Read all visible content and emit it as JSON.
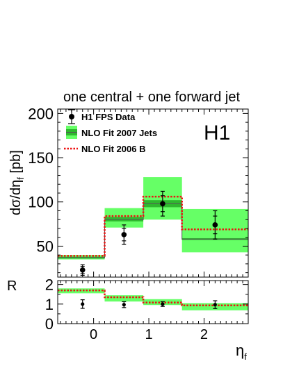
{
  "chart_data": {
    "type": "bar",
    "title": "one central + one forward jet",
    "experiment_label": "H1",
    "xlabel": "η",
    "xlabel_sub": "f",
    "ylabel": "dσ/dη",
    "ylabel_sub": "f",
    "ylabel_unit": " [pb]",
    "ratio_ylabel": "R",
    "xlim": [
      -0.65,
      2.8
    ],
    "ylim": [
      15,
      205
    ],
    "ratio_ylim": [
      0,
      2.2
    ],
    "x_ticks": [
      0,
      1,
      2
    ],
    "y_ticks": [
      50,
      100,
      150,
      200
    ],
    "ratio_y_ticks": [
      0,
      1,
      2
    ],
    "bins": [
      [
        -0.65,
        0.2
      ],
      [
        0.2,
        0.9
      ],
      [
        0.9,
        1.6
      ],
      [
        1.6,
        2.8
      ]
    ],
    "legend": [
      {
        "key": "data",
        "label": "H1 FPS Data"
      },
      {
        "key": "fit2007",
        "label": "NLO Fit 2007 Jets"
      },
      {
        "key": "fit2006",
        "label": "NLO Fit 2006 B"
      }
    ],
    "series": [
      {
        "key": "data",
        "x": [
          -0.2,
          0.55,
          1.25,
          2.2
        ],
        "values": [
          23,
          63,
          98,
          74
        ],
        "err_stat": [
          4,
          7,
          9,
          10
        ],
        "err_tot": [
          6,
          11,
          14,
          16
        ]
      },
      {
        "key": "fit2007",
        "values": [
          37,
          80,
          98,
          58
        ],
        "band_low": [
          35,
          71,
          80,
          43
        ],
        "band_high": [
          40,
          93,
          128,
          92
        ],
        "inner_low": [
          36,
          78,
          94,
          57
        ],
        "inner_high": [
          38,
          83,
          102,
          59
        ]
      },
      {
        "key": "fit2006",
        "values": [
          39,
          84,
          106,
          69
        ]
      }
    ],
    "ratio": {
      "data_values": [
        1.0,
        0.97,
        1.0,
        0.97
      ],
      "data_err": [
        0.22,
        0.15,
        0.12,
        0.2
      ],
      "band_low": [
        1.55,
        1.13,
        0.95,
        0.68
      ],
      "band_high": [
        1.8,
        1.45,
        1.25,
        1.05
      ],
      "fit2006": [
        1.7,
        1.35,
        1.08,
        0.93
      ]
    },
    "colors": {
      "band": "#66ff66",
      "inner_band": "#2eb82e",
      "fit_line": "#555555",
      "fit2006": "#ee1111",
      "data": "#000000"
    }
  }
}
